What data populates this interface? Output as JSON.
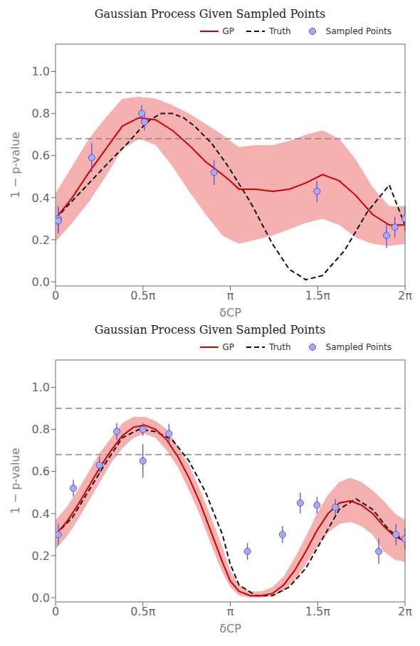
{
  "chart_data": [
    {
      "type": "line",
      "title": "Gaussian Process Given Sampled Points",
      "x_label": "δCP",
      "y_label": "1 − p-value",
      "xlim": [
        0,
        6.283185307179586
      ],
      "ylim": [
        -0.02,
        1.13
      ],
      "xticks": [
        0,
        {
          "value": 1.5707963267948966,
          "label": "0.5π"
        },
        {
          "value": 3.141592653589793,
          "label": "π"
        },
        {
          "value": 4.71238898038469,
          "label": "1.5π"
        },
        {
          "value": 6.283185307179586,
          "label": "2π"
        }
      ],
      "yticks": [
        {
          "value": 0,
          "label": "0.0"
        },
        0.2,
        0.4,
        0.6,
        0.8,
        {
          "value": 1,
          "label": "1.0"
        }
      ],
      "legend": "upper right",
      "reference_lines": [
        {
          "y": 0.9,
          "color": "#888888",
          "line_style": "dashed"
        },
        {
          "y": 0.68,
          "color": "#888888",
          "line_style": "dashed"
        }
      ],
      "series": [
        {
          "name": "GP",
          "type": "line",
          "color": "#cc0000",
          "line_style": "solid",
          "x": [
            0.0,
            0.3,
            0.6,
            0.9,
            1.2,
            1.5,
            1.8,
            2.1,
            2.4,
            2.7,
            3.0,
            3.14,
            3.3,
            3.6,
            3.9,
            4.2,
            4.5,
            4.8,
            5.1,
            5.4,
            5.7,
            6.0,
            6.28
          ],
          "values": [
            0.3,
            0.4,
            0.52,
            0.63,
            0.74,
            0.78,
            0.77,
            0.72,
            0.65,
            0.57,
            0.51,
            0.48,
            0.44,
            0.44,
            0.43,
            0.44,
            0.47,
            0.51,
            0.48,
            0.41,
            0.32,
            0.27,
            0.27
          ],
          "band": {
            "color": "#f5b0b0",
            "lower": [
              0.19,
              0.28,
              0.38,
              0.5,
              0.63,
              0.68,
              0.65,
              0.55,
              0.43,
              0.32,
              0.22,
              0.2,
              0.18,
              0.2,
              0.22,
              0.25,
              0.28,
              0.3,
              0.27,
              0.21,
              0.18,
              0.17,
              0.18
            ],
            "upper": [
              0.42,
              0.55,
              0.68,
              0.78,
              0.87,
              0.88,
              0.87,
              0.84,
              0.8,
              0.75,
              0.7,
              0.67,
              0.64,
              0.65,
              0.65,
              0.67,
              0.7,
              0.72,
              0.68,
              0.58,
              0.45,
              0.36,
              0.36
            ]
          }
        },
        {
          "name": "Truth",
          "type": "line",
          "color": "#111111",
          "line_style": "dashed",
          "x": [
            0.0,
            0.5,
            1.0,
            1.3,
            1.5,
            1.7,
            1.9,
            2.1,
            2.3,
            2.5,
            2.8,
            3.1,
            3.5,
            3.9,
            4.2,
            4.5,
            4.8,
            5.2,
            5.6,
            6.0,
            6.28
          ],
          "values": [
            0.3,
            0.44,
            0.58,
            0.66,
            0.72,
            0.77,
            0.8,
            0.8,
            0.78,
            0.74,
            0.66,
            0.55,
            0.38,
            0.18,
            0.06,
            0.01,
            0.03,
            0.15,
            0.33,
            0.46,
            0.27
          ]
        },
        {
          "name": "Sampled Points",
          "type": "scatter",
          "marker": "o",
          "color": "#5555cc",
          "face_color": "#aaaaff",
          "x": [
            0.05,
            0.05,
            0.65,
            1.55,
            1.6,
            2.85,
            4.7,
            5.95,
            6.1,
            6.28
          ],
          "values": [
            0.3,
            0.29,
            0.59,
            0.8,
            0.76,
            0.52,
            0.43,
            0.22,
            0.26,
            0.3
          ],
          "yerr": [
            0.06,
            0.06,
            0.07,
            0.04,
            0.04,
            0.06,
            0.05,
            0.06,
            0.05,
            0.06
          ]
        }
      ]
    },
    {
      "type": "line",
      "title": "Gaussian Process Given Sampled Points",
      "x_label": "δCP",
      "y_label": "1 − p-value",
      "xlim": [
        0,
        6.283185307179586
      ],
      "ylim": [
        -0.02,
        1.13
      ],
      "xticks": [
        0,
        {
          "value": 1.5707963267948966,
          "label": "0.5π"
        },
        {
          "value": 3.141592653589793,
          "label": "π"
        },
        {
          "value": 4.71238898038469,
          "label": "1.5π"
        },
        {
          "value": 6.283185307179586,
          "label": "2π"
        }
      ],
      "yticks": [
        {
          "value": 0,
          "label": "0.0"
        },
        0.2,
        0.4,
        0.6,
        0.8,
        {
          "value": 1,
          "label": "1.0"
        }
      ],
      "legend": "upper right",
      "reference_lines": [
        {
          "y": 0.9,
          "color": "#888888",
          "line_style": "dashed"
        },
        {
          "y": 0.68,
          "color": "#888888",
          "line_style": "dashed"
        }
      ],
      "series": [
        {
          "name": "GP",
          "type": "line",
          "color": "#cc0000",
          "line_style": "solid",
          "x": [
            0.0,
            0.2,
            0.4,
            0.6,
            0.8,
            1.0,
            1.2,
            1.4,
            1.6,
            1.8,
            2.0,
            2.2,
            2.4,
            2.6,
            2.8,
            3.0,
            3.14,
            3.3,
            3.5,
            3.7,
            3.9,
            4.1,
            4.3,
            4.5,
            4.7,
            4.9,
            5.1,
            5.3,
            5.5,
            5.7,
            5.9,
            6.1,
            6.28
          ],
          "values": [
            0.3,
            0.36,
            0.44,
            0.53,
            0.62,
            0.7,
            0.77,
            0.81,
            0.82,
            0.8,
            0.75,
            0.67,
            0.57,
            0.45,
            0.31,
            0.17,
            0.08,
            0.03,
            0.01,
            0.01,
            0.02,
            0.06,
            0.13,
            0.22,
            0.32,
            0.4,
            0.45,
            0.46,
            0.44,
            0.4,
            0.34,
            0.29,
            0.27
          ],
          "band": {
            "color": "#f5b0b0",
            "lower": [
              0.23,
              0.29,
              0.37,
              0.46,
              0.55,
              0.64,
              0.71,
              0.76,
              0.78,
              0.76,
              0.7,
              0.62,
              0.51,
              0.39,
              0.25,
              0.12,
              0.05,
              0.01,
              0.0,
              0.0,
              0.01,
              0.03,
              0.08,
              0.16,
              0.24,
              0.31,
              0.35,
              0.36,
              0.34,
              0.3,
              0.22,
              0.18,
              0.17
            ],
            "upper": [
              0.37,
              0.43,
              0.51,
              0.6,
              0.69,
              0.76,
              0.83,
              0.86,
              0.86,
              0.84,
              0.8,
              0.72,
              0.63,
              0.51,
              0.38,
              0.24,
              0.13,
              0.06,
              0.03,
              0.03,
              0.05,
              0.1,
              0.19,
              0.29,
              0.4,
              0.49,
              0.55,
              0.57,
              0.55,
              0.51,
              0.46,
              0.4,
              0.37
            ]
          }
        },
        {
          "name": "Truth",
          "type": "line",
          "color": "#111111",
          "line_style": "dashed",
          "x": [
            0.0,
            0.3,
            0.6,
            0.9,
            1.2,
            1.5,
            1.8,
            2.1,
            2.4,
            2.7,
            3.0,
            3.14,
            3.3,
            3.6,
            3.9,
            4.2,
            4.5,
            4.8,
            5.1,
            5.4,
            5.7,
            6.0,
            6.28
          ],
          "values": [
            0.3,
            0.38,
            0.51,
            0.64,
            0.76,
            0.8,
            0.79,
            0.75,
            0.65,
            0.5,
            0.3,
            0.16,
            0.06,
            0.01,
            0.01,
            0.05,
            0.14,
            0.28,
            0.42,
            0.47,
            0.42,
            0.32,
            0.27
          ]
        },
        {
          "name": "Sampled Points",
          "type": "scatter",
          "marker": "o",
          "color": "#5555cc",
          "face_color": "#aaaaff",
          "x": [
            0.05,
            0.32,
            0.79,
            1.1,
            1.57,
            1.57,
            2.04,
            3.45,
            4.08,
            4.4,
            4.7,
            5.03,
            5.81,
            6.12,
            6.28
          ],
          "values": [
            0.3,
            0.52,
            0.63,
            0.79,
            0.8,
            0.65,
            0.78,
            0.22,
            0.3,
            0.45,
            0.44,
            0.43,
            0.22,
            0.3,
            0.28
          ],
          "yerr": [
            0.05,
            0.04,
            0.04,
            0.04,
            0.03,
            0.08,
            0.045,
            0.04,
            0.04,
            0.05,
            0.04,
            0.04,
            0.06,
            0.05,
            0.05
          ]
        }
      ]
    }
  ]
}
